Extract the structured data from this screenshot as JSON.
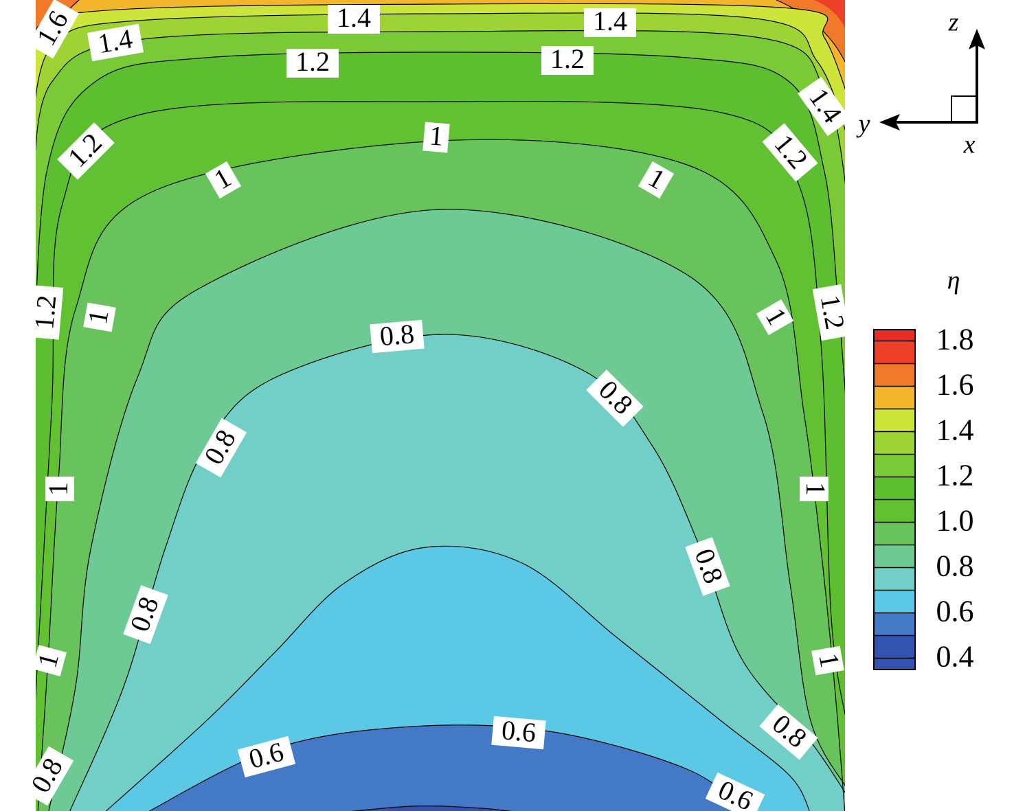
{
  "chart_data": {
    "type": "contour",
    "axis_labels": {
      "z": "z",
      "y": "y",
      "x": "x"
    },
    "colorbar_title": "η",
    "clim": [
      0.35,
      1.85
    ],
    "levels": [
      0.35,
      0.4,
      0.5,
      0.6,
      0.7,
      0.8,
      0.9,
      1.0,
      1.1,
      1.2,
      1.3,
      1.4,
      1.5,
      1.6,
      1.7,
      1.8,
      1.85
    ],
    "colors": [
      "#3453b0",
      "#3453b0",
      "#4479c6",
      "#5bc9e6",
      "#72cfc8",
      "#6dca95",
      "#68c35d",
      "#62c133",
      "#5dbe2f",
      "#7ac936",
      "#9ed335",
      "#cde43a",
      "#f2b52b",
      "#f07a2a",
      "#ee4027",
      "#e62d26"
    ],
    "cticks": [
      1.8,
      1.6,
      1.4,
      1.2,
      {
        "value": 1,
        "label": "1.0"
      },
      0.8,
      0.6,
      0.4
    ],
    "contour_labels": [
      1.6,
      1.4,
      1.4,
      1.4,
      1.2,
      1.2,
      1.4,
      1.2,
      1.2,
      1,
      1,
      1,
      1.2,
      1,
      1,
      1.2,
      0.8,
      0.8,
      0.8,
      1,
      1,
      0.8,
      0.8,
      1,
      1,
      0.8,
      0.6,
      0.6,
      0.8,
      0.6
    ]
  }
}
